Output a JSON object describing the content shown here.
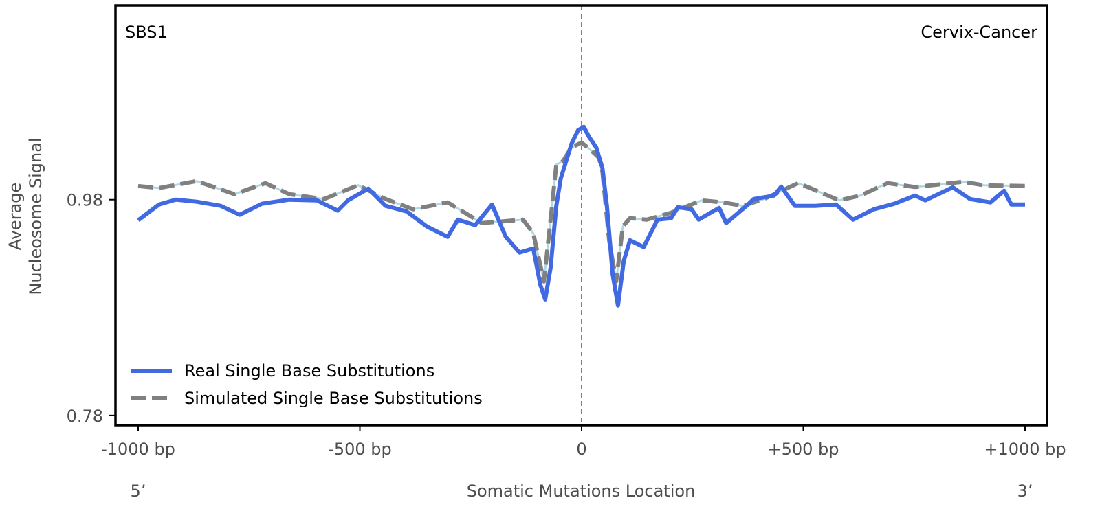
{
  "chart_data": {
    "type": "line",
    "title": "",
    "annotations": {
      "left": "SBS1",
      "right": "Cervix-Cancer"
    },
    "xlabel": "Somatic Mutations Location",
    "ylabel_lines": [
      "Average",
      "Nucleosome Signal"
    ],
    "x_end_labels": {
      "left": "5’",
      "right": "3’"
    },
    "xlim": [
      -1000,
      1000
    ],
    "ylim": [
      0.771,
      1.16
    ],
    "x_ticks": [
      {
        "value": -1000,
        "label": "-1000 bp"
      },
      {
        "value": -500,
        "label": "-500 bp"
      },
      {
        "value": 0,
        "label": "0"
      },
      {
        "value": 500,
        "label": "+500 bp"
      },
      {
        "value": 1000,
        "label": "+1000 bp"
      }
    ],
    "y_ticks": [
      {
        "value": 0.98,
        "label": "0.98"
      },
      {
        "value": 0.78,
        "label": "0.78"
      }
    ],
    "grid": false,
    "reference_line": {
      "x": 0,
      "style": "dashed",
      "color": "#808080"
    },
    "legend": {
      "placement": "bottom-left"
    },
    "series": [
      {
        "name": "Real Single Base Substitutions",
        "color": "#4169e1",
        "style": "solid",
        "x": [
          -1000,
          -953,
          -915,
          -868,
          -814,
          -771,
          -721,
          -659,
          -597,
          -550,
          -527,
          -481,
          -442,
          -395,
          -349,
          -302,
          -279,
          -240,
          -202,
          -171,
          -140,
          -109,
          -93,
          -82,
          -70,
          -57,
          -47,
          -23,
          -8,
          5,
          17,
          33,
          47,
          57,
          70,
          82,
          95,
          109,
          140,
          171,
          202,
          217,
          248,
          264,
          310,
          326,
          372,
          388,
          434,
          450,
          481,
          527,
          574,
          612,
          659,
          705,
          752,
          775,
          837,
          876,
          922,
          953,
          969,
          1000
        ],
        "y": [
          0.9609,
          0.9755,
          0.98,
          0.9781,
          0.9743,
          0.966,
          0.9762,
          0.98,
          0.9794,
          0.9698,
          0.9794,
          0.9902,
          0.9743,
          0.9692,
          0.9552,
          0.9456,
          0.9615,
          0.9564,
          0.9755,
          0.9456,
          0.931,
          0.9348,
          0.901,
          0.8876,
          0.9169,
          0.9743,
          0.9997,
          1.0316,
          1.0443,
          1.0475,
          1.038,
          1.0284,
          1.0093,
          0.9743,
          0.9106,
          0.8819,
          0.9233,
          0.9424,
          0.9361,
          0.9615,
          0.9628,
          0.973,
          0.9711,
          0.9615,
          0.9724,
          0.9583,
          0.9743,
          0.9806,
          0.9838,
          0.9921,
          0.9743,
          0.9743,
          0.9755,
          0.9615,
          0.9711,
          0.9762,
          0.9838,
          0.9794,
          0.9915,
          0.9806,
          0.9775,
          0.9883,
          0.9755,
          0.9755
        ]
      },
      {
        "name": "Simulated Single Base Substitutions",
        "color": "#808080",
        "underlay_color": "#add8e6",
        "style": "dashed",
        "x": [
          -1000,
          -953,
          -868,
          -783,
          -713,
          -659,
          -581,
          -504,
          -442,
          -380,
          -302,
          -225,
          -132,
          -109,
          -85,
          -70,
          -57,
          -42,
          -23,
          0,
          23,
          39,
          47,
          62,
          78,
          93,
          109,
          147,
          202,
          271,
          318,
          364,
          411,
          488,
          519,
          581,
          628,
          690,
          752,
          860,
          907,
          1000
        ],
        "y": [
          0.9927,
          0.9908,
          0.9972,
          0.9851,
          0.9953,
          0.9851,
          0.9806,
          0.9934,
          0.9806,
          0.9711,
          0.9775,
          0.9583,
          0.9615,
          0.9488,
          0.9042,
          0.9615,
          1.0125,
          1.0157,
          1.0284,
          1.0329,
          1.0252,
          1.0189,
          1.0061,
          0.9424,
          0.9042,
          0.9552,
          0.9628,
          0.9615,
          0.9679,
          0.9794,
          0.9775,
          0.9743,
          0.9806,
          0.9953,
          0.9902,
          0.9794,
          0.9838,
          0.9953,
          0.9917,
          0.9966,
          0.9934,
          0.9927
        ]
      }
    ]
  }
}
